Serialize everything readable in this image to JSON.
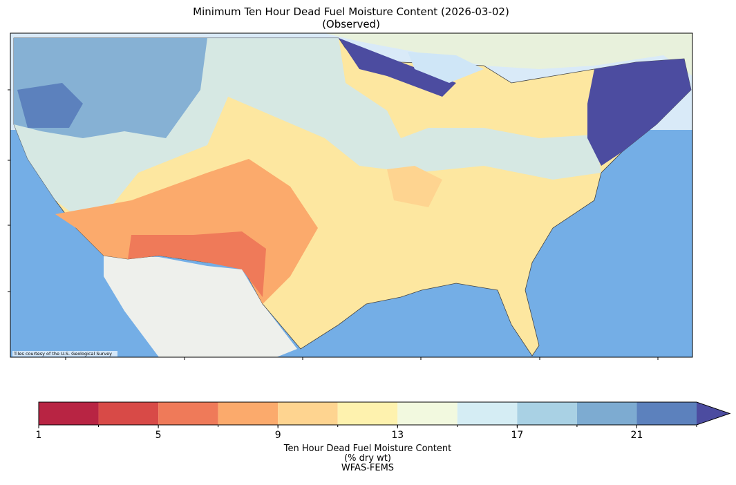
{
  "map": {
    "title": "Minimum Ten Hour Dead Fuel Moisture Content (2026-03-02)",
    "subtitle": "(Observed)",
    "attribution": "Tiles courtesy of the U.S. Geological Survey",
    "colorbar": {
      "bins": [
        1,
        3,
        5,
        7,
        9,
        11,
        13,
        15,
        17,
        19,
        21,
        23
      ],
      "colors": [
        "#b82443",
        "#d84a47",
        "#ef7a59",
        "#fbaa6c",
        "#fed490",
        "#fef2ae",
        "#f2f9df",
        "#d5edf4",
        "#a9d1e4",
        "#7dabd1",
        "#5c81bd"
      ],
      "extend_color": "#4c4ca0",
      "ticks": [
        1,
        5,
        9,
        13,
        17,
        21
      ],
      "label": [
        "Ten Hour Dead Fuel Moisture Content",
        "(% dry wt)",
        "WFAS-FEMS"
      ]
    }
  }
}
